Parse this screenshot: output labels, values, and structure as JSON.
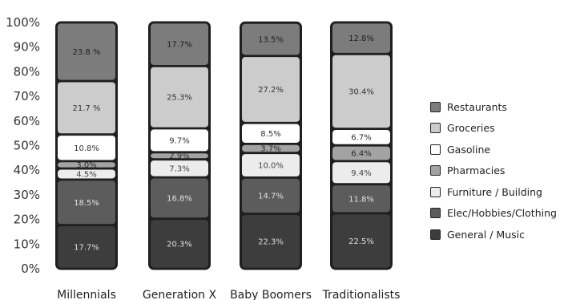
{
  "chart_data": {
    "type": "bar",
    "stacked": true,
    "y_axis": {
      "range": [
        0,
        100
      ],
      "tick_labels": [
        "0%",
        "10%",
        "20%",
        "30%",
        "40%",
        "50%",
        "60%",
        "70%",
        "80%",
        "90%",
        "100%"
      ]
    },
    "categories": [
      "Millennials",
      "Generation X",
      "Baby Boomers",
      "Traditionalists"
    ],
    "series": [
      {
        "name": "General / Music",
        "color": "#3d3d3d",
        "text_color": "#dddddd",
        "values": [
          17.7,
          20.3,
          22.3,
          22.5
        ],
        "labels": [
          "17.7%",
          "20.3%",
          "22.3%",
          "22.5%"
        ]
      },
      {
        "name": "Elec/Hobbies/Clothing",
        "color": "#5c5c5c",
        "text_color": "#e0e0e0",
        "values": [
          18.5,
          16.8,
          14.7,
          11.8
        ],
        "labels": [
          "18.5%",
          "16.8%",
          "14.7%",
          "11.8%"
        ]
      },
      {
        "name": "Furniture / Building",
        "color": "#ececec",
        "text_color": "#444444",
        "values": [
          4.5,
          7.3,
          10.0,
          9.4
        ],
        "labels": [
          "4.5%",
          "7.3%",
          "10.0%",
          "9.4%"
        ]
      },
      {
        "name": "Pharmacies",
        "color": "#a3a3a3",
        "text_color": "#2a2a2a",
        "values": [
          3.0,
          2.9,
          3.7,
          6.4
        ],
        "labels": [
          "3.0%",
          "2.9%",
          "3.7%",
          "6.4%"
        ]
      },
      {
        "name": "Gasoline",
        "color": "#ffffff",
        "text_color": "#333333",
        "values": [
          10.8,
          9.7,
          8.5,
          6.7
        ],
        "labels": [
          "10.8%",
          "9.7%",
          "8.5%",
          "6.7%"
        ]
      },
      {
        "name": "Groceries",
        "color": "#cccccc",
        "text_color": "#333333",
        "values": [
          21.7,
          25.3,
          27.2,
          30.4
        ],
        "labels": [
          "21.7 %",
          "25.3%",
          "27.2%",
          "30.4%"
        ]
      },
      {
        "name": "Restaurants",
        "color": "#7c7c7c",
        "text_color": "#1e1e1e",
        "values": [
          23.8,
          17.7,
          13.5,
          12.8
        ],
        "labels": [
          "23.8 %",
          "17.7%",
          "13.5%",
          "12.8%"
        ]
      }
    ],
    "legend": {
      "position": "right",
      "order": [
        "Restaurants",
        "Groceries",
        "Gasoline",
        "Pharmacies",
        "Furniture / Building",
        "Elec/Hobbies/Clothing",
        "General / Music"
      ]
    },
    "grid": false
  }
}
